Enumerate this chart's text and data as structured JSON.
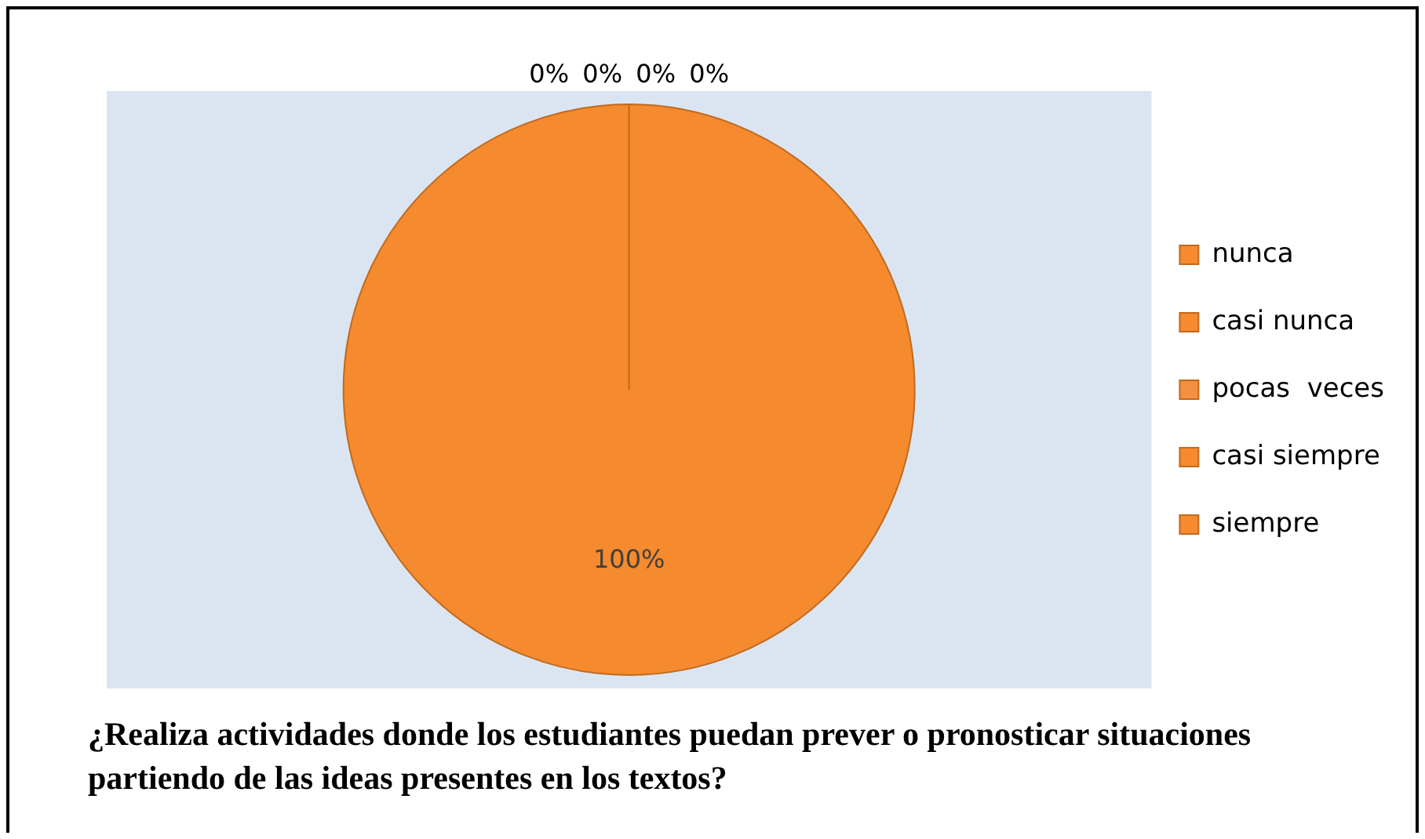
{
  "chart_data": {
    "type": "pie",
    "title": "¿Realiza actividades donde los estudiantes puedan prever o pronosticar situaciones partiendo de las ideas presentes en los textos?",
    "categories": [
      "nunca",
      "casi nunca",
      "pocas  veces",
      "casi siempre",
      "siempre"
    ],
    "values": [
      0,
      0,
      0,
      0,
      100
    ],
    "colors": [
      "#f58a2e",
      "#f58a2e",
      "#f3903f",
      "#f58a2e",
      "#f58a2e"
    ],
    "value_labels": [
      "0%",
      "0%",
      "0%",
      "0%",
      "100%"
    ],
    "legend": "right"
  }
}
